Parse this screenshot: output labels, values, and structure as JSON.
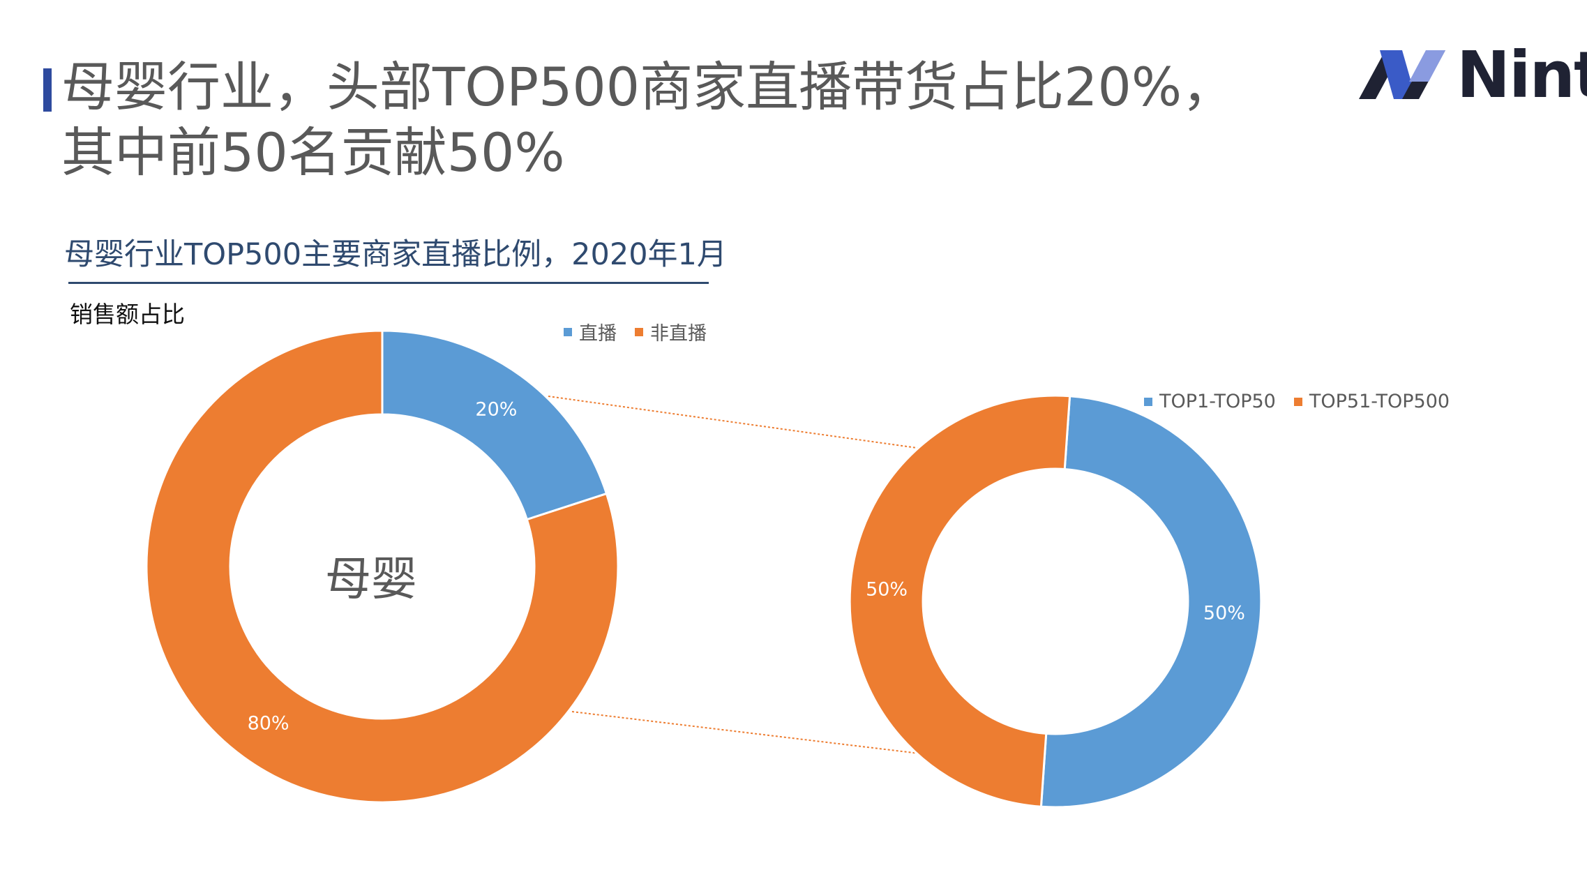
{
  "title": {
    "line1": "母婴行业，头部TOP500商家直播带货占比20%，",
    "line2": "其中前50名贡献50%"
  },
  "logo": {
    "text": "Nint",
    "colors": {
      "dark": "#1F2233",
      "blue": "#3A5BC7"
    }
  },
  "subtitle": "母婴行业TOP500主要商家直播比例，2020年1月",
  "y_label": "销售额占比",
  "colors": {
    "blue": "#5B9BD5",
    "orange": "#ED7D31",
    "connector": "#ED7D31",
    "text": "#595959"
  },
  "chart_data": [
    {
      "type": "pie",
      "variant": "donut",
      "center_label": "母婴",
      "categories": [
        "直播",
        "非直播"
      ],
      "values": [
        20,
        80
      ],
      "labels": [
        "20%",
        "80%"
      ],
      "legend": [
        "直播",
        "非直播"
      ],
      "legend_position": "top-right"
    },
    {
      "type": "pie",
      "variant": "donut",
      "categories": [
        "TOP1-TOP50",
        "TOP51-TOP500"
      ],
      "values": [
        50,
        50
      ],
      "labels": [
        "50%",
        "50%"
      ],
      "legend": [
        "TOP1-TOP50",
        "TOP51-TOP500"
      ],
      "legend_position": "top-right"
    }
  ]
}
